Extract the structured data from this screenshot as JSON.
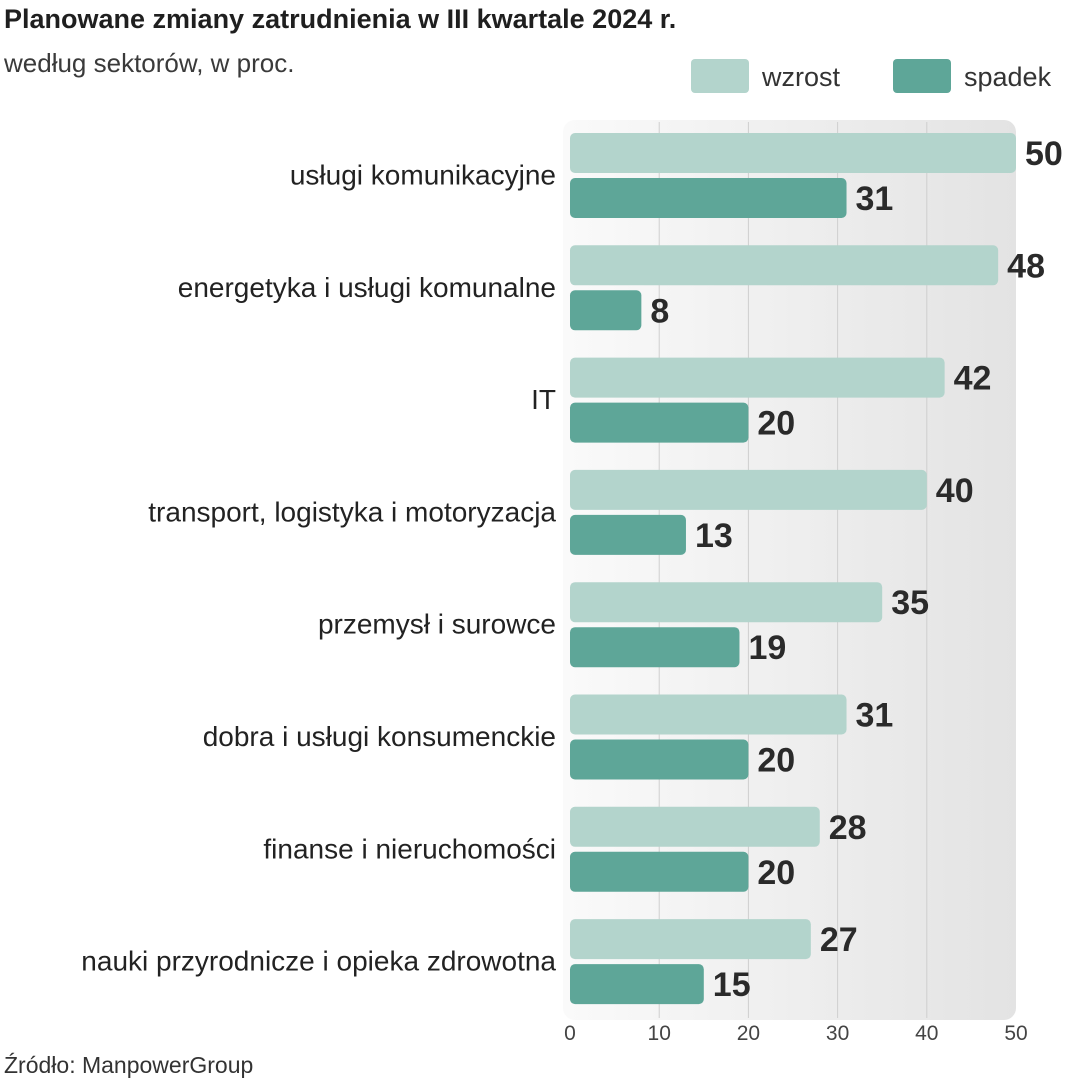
{
  "chart_data": {
    "type": "bar",
    "orientation": "horizontal",
    "title": "Planowane zmiany zatrudnienia w III kwartale 2024 r.",
    "subtitle": "według sektorów, w proc.",
    "source": "Źródło: ManpowerGroup",
    "categories": [
      "usługi komunikacyjne",
      "energetyka i usługi komunalne",
      "IT",
      "transport, logistyka i motoryzacja",
      "przemysł i surowce",
      "dobra i usługi konsumenckie",
      "finanse i nieruchomości",
      "nauki przyrodnicze i opieka zdrowotna"
    ],
    "series": [
      {
        "name": "wzrost",
        "color": "#b3d4cc",
        "values": [
          50,
          48,
          42,
          40,
          35,
          31,
          28,
          27
        ]
      },
      {
        "name": "spadek",
        "color": "#5ea698",
        "values": [
          31,
          8,
          20,
          13,
          19,
          20,
          20,
          15
        ]
      }
    ],
    "xlim": [
      0,
      50
    ],
    "xticks": [
      0,
      10,
      20,
      30,
      40,
      50
    ],
    "grid": true,
    "legend_position": "top-right"
  }
}
